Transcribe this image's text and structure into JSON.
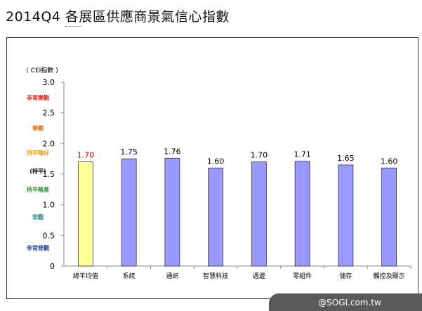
{
  "page": {
    "title": "2014Q4 各展區供應商景氣信心指數"
  },
  "watermark": {
    "text": "@SOGI.com.tw"
  },
  "chart_data": {
    "type": "bar",
    "title": "",
    "xlabel": "",
    "ylabel": "( CEI指數 )",
    "ylim": [
      0,
      3.0
    ],
    "y_ticks": [
      "0",
      "0.5",
      "1.0",
      "1.5",
      "2.0",
      "2.5",
      "3.0"
    ],
    "grid": false,
    "categories": [
      "總平均值",
      "系統",
      "通訊",
      "智慧科技",
      "週邊",
      "零組件",
      "儲存",
      "觸控及顯示"
    ],
    "values": [
      1.7,
      1.75,
      1.76,
      1.6,
      1.7,
      1.71,
      1.65,
      1.6
    ],
    "value_labels": [
      "1.70",
      "1.75",
      "1.76",
      "1.60",
      "1.70",
      "1.71",
      "1.65",
      "1.60"
    ],
    "highlight_index": 0,
    "colors": {
      "bar": "#9999ff",
      "highlight_bar": "#ffff99",
      "highlight_label": "#cc0000",
      "bar_stroke": "#333333"
    },
    "sentiment_labels": [
      {
        "text": "非常樂觀",
        "value": 2.75,
        "color": "#e0201b"
      },
      {
        "text": "樂觀",
        "value": 2.25,
        "color": "#e46c0a"
      },
      {
        "text": "持平略好",
        "value": 1.85,
        "color": "#f39c12"
      },
      {
        "text": "(持平)",
        "value": 1.55,
        "color": "#000000"
      },
      {
        "text": "持平略差",
        "value": 1.25,
        "color": "#2e8b2e"
      },
      {
        "text": "悲觀",
        "value": 0.8,
        "color": "#2e8b8b"
      },
      {
        "text": "非常悲觀",
        "value": 0.3,
        "color": "#1f3e8a"
      }
    ]
  }
}
